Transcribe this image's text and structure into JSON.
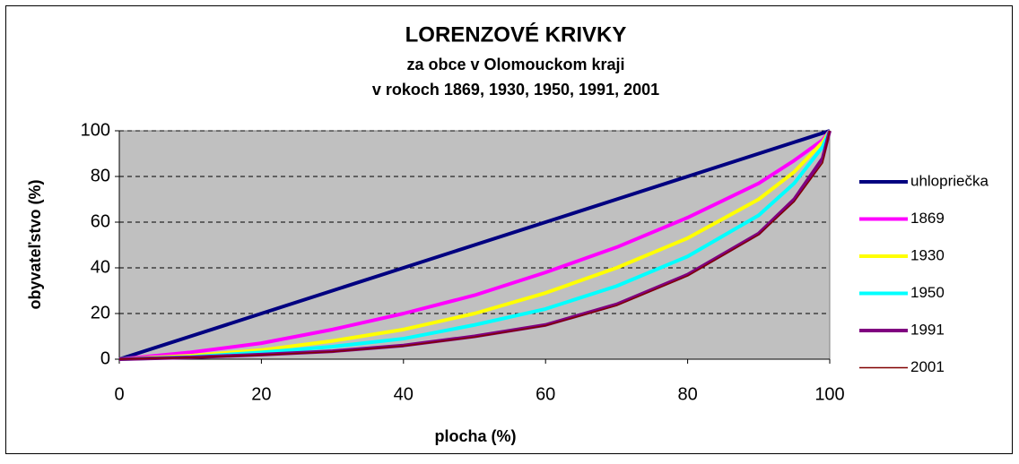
{
  "chart_data": {
    "type": "line",
    "title": "LORENZOVÉ KRIVKY",
    "subtitle": [
      "za obce v Olomouckom kraji",
      "v rokoch 1869, 1930, 1950, 1991, 2001"
    ],
    "x_label": "plocha (%)",
    "y_label": "obyvateľstvo (%)",
    "x": [
      0,
      10,
      20,
      30,
      40,
      50,
      60,
      70,
      80,
      90,
      95,
      99,
      100
    ],
    "series": [
      {
        "name": "uhlopriečka",
        "color": "#000080",
        "width": 4,
        "values": [
          0,
          10,
          20,
          30,
          40,
          50,
          60,
          70,
          80,
          90,
          95,
          99,
          100
        ]
      },
      {
        "name": "1869",
        "color": "#ff00ff",
        "width": 4,
        "values": [
          0,
          3,
          7,
          13,
          20,
          28,
          38,
          49,
          62,
          77,
          87,
          96,
          100
        ]
      },
      {
        "name": "1930",
        "color": "#ffff00",
        "width": 4,
        "values": [
          0,
          1.5,
          4,
          8,
          13,
          20,
          29,
          40,
          53,
          70,
          82,
          95,
          100
        ]
      },
      {
        "name": "1950",
        "color": "#00ffff",
        "width": 4,
        "values": [
          0,
          1,
          3,
          5.5,
          9,
          15,
          22,
          32,
          45,
          63,
          77,
          93,
          100
        ]
      },
      {
        "name": "1991",
        "color": "#800080",
        "width": 4,
        "values": [
          0,
          0.8,
          2,
          3.5,
          6,
          10,
          15,
          24,
          37,
          55,
          70,
          88,
          100
        ]
      },
      {
        "name": "2001",
        "color": "#800000",
        "width": 1.5,
        "values": [
          0,
          0.7,
          1.8,
          3.3,
          5.8,
          9.7,
          14.7,
          23.5,
          36.5,
          54.5,
          69,
          86,
          100
        ]
      }
    ],
    "xlim": [
      0,
      100
    ],
    "xticks": [
      0,
      20,
      40,
      60,
      80,
      100
    ],
    "ylim": [
      0,
      100
    ],
    "yticks": [
      0,
      20,
      40,
      60,
      80,
      100
    ],
    "grid": true,
    "plot_background": "#c0c0c0",
    "legend": "right"
  }
}
